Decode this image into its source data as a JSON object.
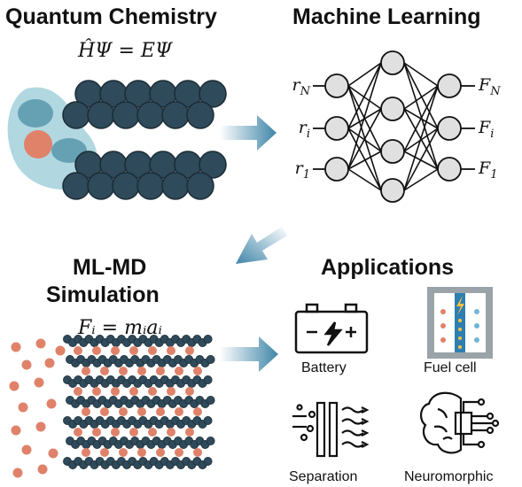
{
  "panels": {
    "quantum": {
      "title": "Quantum Chemistry",
      "equation": "ĤΨ = EΨ"
    },
    "ml": {
      "title": "Machine Learning",
      "inputs": [
        {
          "label": "r",
          "sub": "N"
        },
        {
          "label": "r",
          "sub": "i"
        },
        {
          "label": "r",
          "sub": "1"
        }
      ],
      "outputs": [
        {
          "label": "F",
          "sub": "N"
        },
        {
          "label": "F",
          "sub": "i"
        },
        {
          "label": "F",
          "sub": "1"
        }
      ]
    },
    "mlmd": {
      "title_line1": "ML-MD",
      "title_line2": "Simulation",
      "equation": "Fᵢ = mᵢaᵢ"
    },
    "applications": {
      "title": "Applications",
      "items": [
        {
          "label": "Battery",
          "icon": "battery-icon"
        },
        {
          "label": "Fuel cell",
          "icon": "fuel-cell-icon"
        },
        {
          "label": "Separation",
          "icon": "separation-icon"
        },
        {
          "label": "Neuromorphic",
          "icon": "neuromorphic-icon"
        }
      ]
    }
  },
  "colors": {
    "atom": "#2f4a5a",
    "atom_stroke": "#1b2c36",
    "ion": "#e0826a",
    "cloud": "#a9d4de",
    "cloud_dark": "#4e8fa3",
    "arrow": "#3f85a8",
    "node_fill": "#e0e0e0"
  }
}
